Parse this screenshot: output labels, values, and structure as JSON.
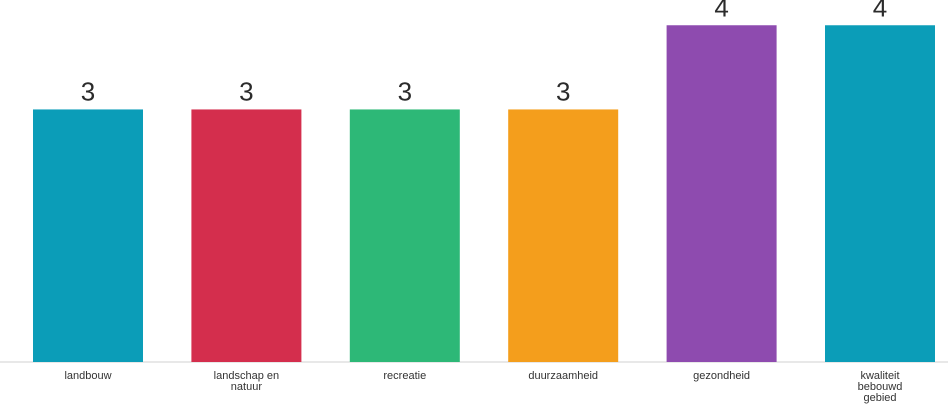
{
  "chart_data": {
    "type": "bar",
    "title": "",
    "xlabel": "",
    "ylabel": "",
    "ylim": [
      0,
      4.3
    ],
    "grid": false,
    "legend": "none",
    "categories": [
      [
        "landbouw"
      ],
      [
        "landschap en",
        "natuur"
      ],
      [
        "recreatie"
      ],
      [
        "duurzaamheid"
      ],
      [
        "gezondheid"
      ],
      [
        "kwaliteit",
        "bebouwd",
        "gebied"
      ]
    ],
    "values": [
      3,
      3,
      3,
      3,
      4,
      4
    ],
    "colors": [
      "#0B9DB8",
      "#D42E4D",
      "#2DB877",
      "#F49E1C",
      "#8E4BAF",
      "#0B9DB8"
    ],
    "baseline_color": "#d0d0d0"
  }
}
